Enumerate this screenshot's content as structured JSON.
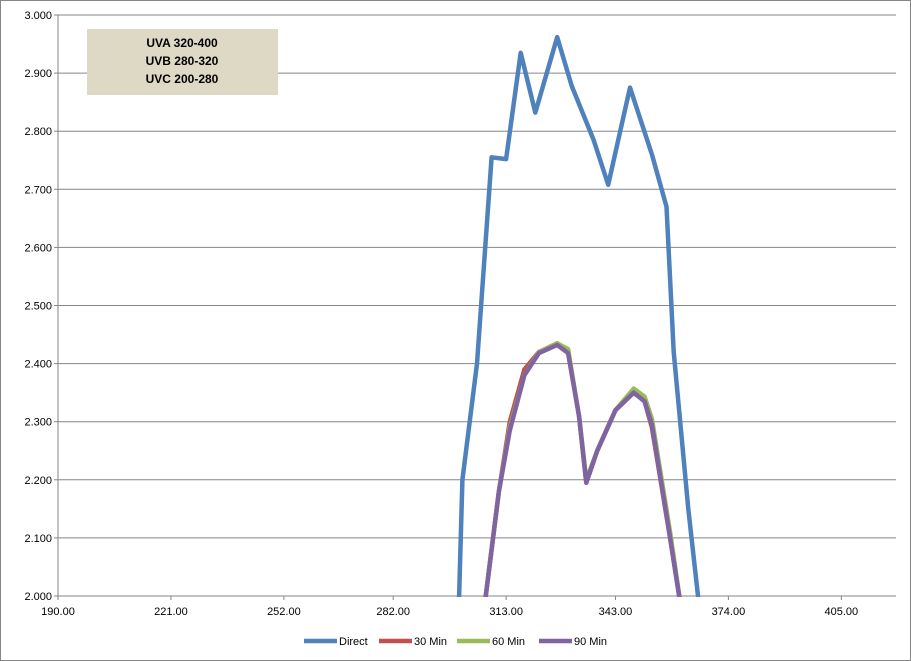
{
  "chart_data": {
    "type": "line",
    "title": "",
    "xlabel": "",
    "ylabel": "",
    "xlim": [
      190,
      420
    ],
    "ylim": [
      2.0,
      3.0
    ],
    "grid": "horizontal",
    "legend_position": "bottom",
    "x_tick_labels": [
      "190.00",
      "221.00",
      "252.00",
      "282.00",
      "313.00",
      "343.00",
      "374.00",
      "405.00"
    ],
    "x_tick_values": [
      190,
      221,
      252,
      282,
      313,
      343,
      374,
      405
    ],
    "y_tick_labels": [
      "2.000",
      "2.100",
      "2.200",
      "2.300",
      "2.400",
      "2.500",
      "2.600",
      "2.700",
      "2.800",
      "2.900",
      "3.000"
    ],
    "y_tick_values": [
      2.0,
      2.1,
      2.2,
      2.3,
      2.4,
      2.5,
      2.6,
      2.7,
      2.8,
      2.9,
      3.0
    ],
    "annotation": {
      "lines": [
        "UVA 320-400",
        "UVB 280-320",
        "UVC 200-280"
      ],
      "background": "#ddd9c4"
    },
    "series": [
      {
        "name": "Direct",
        "color": "#4f81bd",
        "points": [
          [
            300,
            1.98
          ],
          [
            301,
            2.2
          ],
          [
            305,
            2.4
          ],
          [
            309,
            2.755
          ],
          [
            313,
            2.752
          ],
          [
            317,
            2.935
          ],
          [
            321,
            2.832
          ],
          [
            327,
            2.962
          ],
          [
            331,
            2.878
          ],
          [
            337,
            2.785
          ],
          [
            341,
            2.708
          ],
          [
            347,
            2.875
          ],
          [
            353,
            2.76
          ],
          [
            357,
            2.67
          ],
          [
            359,
            2.42
          ],
          [
            363,
            2.15
          ],
          [
            366,
            1.98
          ]
        ]
      },
      {
        "name": "30 Min",
        "color": "#c0504d",
        "points": [
          [
            307,
            1.98
          ],
          [
            311,
            2.18
          ],
          [
            314,
            2.3
          ],
          [
            318,
            2.39
          ],
          [
            322,
            2.42
          ],
          [
            327,
            2.435
          ],
          [
            330,
            2.42
          ],
          [
            333,
            2.31
          ],
          [
            335,
            2.195
          ],
          [
            338,
            2.25
          ],
          [
            343,
            2.32
          ],
          [
            348,
            2.35
          ],
          [
            351,
            2.335
          ],
          [
            353,
            2.29
          ],
          [
            358,
            2.1
          ],
          [
            361,
            1.98
          ]
        ]
      },
      {
        "name": "60 Min",
        "color": "#9bbb59",
        "points": [
          [
            307,
            1.98
          ],
          [
            311,
            2.18
          ],
          [
            314,
            2.29
          ],
          [
            318,
            2.38
          ],
          [
            322,
            2.42
          ],
          [
            327,
            2.435
          ],
          [
            330,
            2.425
          ],
          [
            333,
            2.31
          ],
          [
            335,
            2.2
          ],
          [
            338,
            2.25
          ],
          [
            343,
            2.32
          ],
          [
            348,
            2.357
          ],
          [
            351,
            2.343
          ],
          [
            353,
            2.305
          ],
          [
            358,
            2.11
          ],
          [
            361,
            1.98
          ]
        ]
      },
      {
        "name": "90 Min",
        "color": "#8064a2",
        "points": [
          [
            307,
            1.98
          ],
          [
            311,
            2.18
          ],
          [
            314,
            2.285
          ],
          [
            318,
            2.38
          ],
          [
            322,
            2.418
          ],
          [
            327,
            2.432
          ],
          [
            330,
            2.418
          ],
          [
            333,
            2.31
          ],
          [
            335,
            2.195
          ],
          [
            338,
            2.25
          ],
          [
            343,
            2.32
          ],
          [
            348,
            2.35
          ],
          [
            351,
            2.335
          ],
          [
            353,
            2.295
          ],
          [
            358,
            2.1
          ],
          [
            361,
            1.98
          ]
        ]
      }
    ]
  }
}
